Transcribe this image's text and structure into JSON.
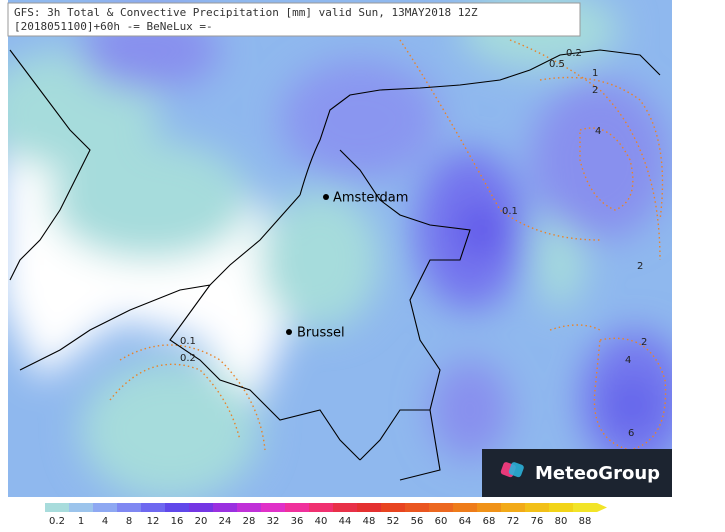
{
  "header": {
    "line1": "GFS: 3h Total & Convective Precipitation [mm] valid Sun, 13MAY2018 12Z",
    "line2": "[2018051100]+60h -= BeNeLux =-"
  },
  "cities": [
    "Amsterdam",
    "Brussel"
  ],
  "contour_labels": [
    "0.2",
    "0.5",
    "1",
    "2",
    "4",
    "0.1",
    "2",
    "2",
    "4",
    "6",
    "0.1",
    "0.2"
  ],
  "legend": {
    "labels": [
      "0.2",
      "1",
      "4",
      "8",
      "12",
      "16",
      "20",
      "24",
      "28",
      "32",
      "36",
      "40",
      "44",
      "48",
      "52",
      "56",
      "60",
      "64",
      "68",
      "72",
      "76",
      "80",
      "88"
    ],
    "colors": [
      "#a8dcdc",
      "#9cc4ec",
      "#8ea8f2",
      "#7f88f2",
      "#6e68f0",
      "#6048ea",
      "#7436e4",
      "#9a30e0",
      "#c030d8",
      "#e030c8",
      "#f0309c",
      "#f03070",
      "#e83048",
      "#e43030",
      "#e84420",
      "#ea5620",
      "#ec6820",
      "#ee7c1a",
      "#f09218",
      "#f2aa18",
      "#f2c018",
      "#f2d418",
      "#f2e428"
    ]
  },
  "logo": {
    "text": "MeteoGroup"
  }
}
